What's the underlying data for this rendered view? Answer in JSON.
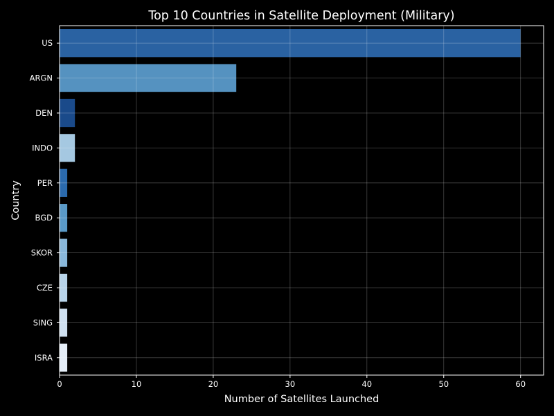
{
  "chart_data": {
    "type": "bar",
    "orientation": "horizontal",
    "title": "Top 10 Countries in Satellite Deployment (Military)",
    "xlabel": "Number of Satellites Launched",
    "ylabel": "Country",
    "categories": [
      "US",
      "ARGN",
      "DEN",
      "INDO",
      "PER",
      "BGD",
      "SKOR",
      "CZE",
      "SING",
      "ISRA"
    ],
    "values": [
      60,
      23,
      2,
      2,
      1,
      1,
      1,
      1,
      1,
      1
    ],
    "bar_colors": [
      "#2a62a2",
      "#5592c0",
      "#1a4a8a",
      "#a5c8e1",
      "#2b6aad",
      "#5a9ac8",
      "#8ab8db",
      "#b8d4ea",
      "#cfe0f0",
      "#e5eef8"
    ],
    "xlim": [
      0,
      63
    ],
    "xticks": [
      0,
      10,
      20,
      30,
      40,
      50,
      60
    ],
    "grid": true,
    "legend": "none"
  }
}
